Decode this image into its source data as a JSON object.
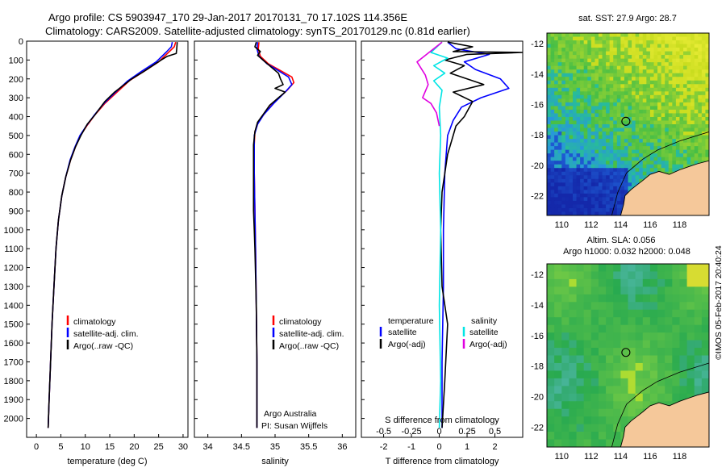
{
  "titles": {
    "line1": "Argo profile: CS 5903947_170 29-Jan-2017 20170131_70 17.102S 114.356E",
    "line2": "Climatology: CARS2009. Satellite-adjusted climatology: synTS_20170129.nc (0.81d earlier)"
  },
  "colors": {
    "climatology": "#ff0000",
    "satellite": "#0000ff",
    "argo": "#000000",
    "salinity_satellite": "#00e5e5",
    "salinity_argo": "#e000e0",
    "land": "#f5c89a"
  },
  "footer": {
    "credit": "Argo Australia",
    "pi": "PI: Susan Wijffels",
    "timestamp": "©IMOS 05-Feb-2017 20:40:24"
  },
  "chart_data": [
    {
      "type": "line",
      "name": "temperature-profile",
      "xlabel": "temperature (deg C)",
      "ylabel": "",
      "xlim": [
        -2,
        31
      ],
      "ylim": [
        2100,
        0
      ],
      "xticks": [
        0,
        5,
        10,
        15,
        20,
        25,
        30
      ],
      "yticks": [
        0,
        100,
        200,
        300,
        400,
        500,
        600,
        700,
        800,
        900,
        1000,
        1100,
        1200,
        1300,
        1400,
        1500,
        1600,
        1700,
        1800,
        1900,
        2000
      ],
      "legend": [
        "climatology",
        "satellite-adj. clim.",
        "Argo(..raw -QC)"
      ],
      "series": [
        {
          "name": "climatology",
          "color": "#ff0000",
          "points": [
            [
              28.5,
              5
            ],
            [
              28.2,
              30
            ],
            [
              27.0,
              60
            ],
            [
              25.0,
              110
            ],
            [
              22.0,
              160
            ],
            [
              19.0,
              210
            ],
            [
              16.5,
              270
            ],
            [
              14.0,
              330
            ],
            [
              12.0,
              390
            ],
            [
              10.3,
              450
            ],
            [
              9.0,
              500
            ],
            [
              8.0,
              560
            ],
            [
              7.0,
              630
            ],
            [
              6.0,
              720
            ],
            [
              5.2,
              820
            ],
            [
              4.5,
              950
            ],
            [
              4.0,
              1100
            ],
            [
              3.6,
              1300
            ],
            [
              3.2,
              1500
            ],
            [
              2.9,
              1700
            ],
            [
              2.6,
              1900
            ],
            [
              2.4,
              2050
            ]
          ]
        },
        {
          "name": "satellite-adj. clim.",
          "color": "#0000ff",
          "points": [
            [
              27.8,
              5
            ],
            [
              27.6,
              30
            ],
            [
              26.5,
              60
            ],
            [
              24.5,
              110
            ],
            [
              21.5,
              160
            ],
            [
              18.7,
              210
            ],
            [
              16.2,
              270
            ],
            [
              13.8,
              330
            ],
            [
              11.9,
              390
            ],
            [
              10.2,
              450
            ],
            [
              8.9,
              500
            ],
            [
              7.9,
              560
            ],
            [
              6.9,
              630
            ],
            [
              6.0,
              720
            ],
            [
              5.2,
              820
            ],
            [
              4.5,
              950
            ],
            [
              4.0,
              1100
            ],
            [
              3.6,
              1300
            ],
            [
              3.2,
              1500
            ],
            [
              2.9,
              1700
            ],
            [
              2.6,
              1900
            ],
            [
              2.4,
              2050
            ]
          ]
        },
        {
          "name": "Argo(..raw -QC)",
          "color": "#000000",
          "points": [
            [
              28.8,
              5
            ],
            [
              28.7,
              40
            ],
            [
              28.6,
              65
            ],
            [
              26.8,
              80
            ],
            [
              25.5,
              100
            ],
            [
              22.0,
              160
            ],
            [
              19.5,
              200
            ],
            [
              16.0,
              270
            ],
            [
              14.0,
              320
            ],
            [
              12.0,
              390
            ],
            [
              10.4,
              440
            ],
            [
              9.1,
              500
            ],
            [
              8.0,
              560
            ],
            [
              7.0,
              630
            ],
            [
              6.0,
              720
            ],
            [
              5.2,
              820
            ],
            [
              4.5,
              950
            ],
            [
              4.0,
              1100
            ],
            [
              3.6,
              1300
            ],
            [
              3.2,
              1500
            ],
            [
              2.9,
              1700
            ],
            [
              2.6,
              1900
            ],
            [
              2.4,
              2050
            ]
          ]
        }
      ]
    },
    {
      "type": "line",
      "name": "salinity-profile",
      "xlabel": "salinity",
      "ylabel": "",
      "xlim": [
        33.8,
        36.2
      ],
      "ylim": [
        2100,
        0
      ],
      "xticks": [
        34,
        34.5,
        35,
        35.5,
        36
      ],
      "yticks": [],
      "legend": [
        "climatology",
        "satellite-adj. clim.",
        "Argo(..raw -QC)"
      ],
      "series": [
        {
          "name": "climatology",
          "color": "#ff0000",
          "points": [
            [
              34.76,
              5
            ],
            [
              34.75,
              40
            ],
            [
              34.78,
              80
            ],
            [
              34.9,
              120
            ],
            [
              35.05,
              150
            ],
            [
              35.25,
              190
            ],
            [
              35.28,
              220
            ],
            [
              35.18,
              260
            ],
            [
              35.0,
              320
            ],
            [
              34.85,
              380
            ],
            [
              34.75,
              430
            ],
            [
              34.7,
              480
            ],
            [
              34.69,
              550
            ],
            [
              34.69,
              700
            ],
            [
              34.7,
              900
            ],
            [
              34.71,
              1100
            ],
            [
              34.72,
              1400
            ],
            [
              34.73,
              1700
            ],
            [
              34.73,
              2050
            ]
          ]
        },
        {
          "name": "satellite-adj. clim.",
          "color": "#0000ff",
          "points": [
            [
              34.74,
              5
            ],
            [
              34.73,
              40
            ],
            [
              34.76,
              80
            ],
            [
              34.88,
              120
            ],
            [
              35.02,
              150
            ],
            [
              35.2,
              190
            ],
            [
              35.25,
              230
            ],
            [
              35.15,
              270
            ],
            [
              34.98,
              330
            ],
            [
              34.83,
              390
            ],
            [
              34.74,
              440
            ],
            [
              34.69,
              500
            ],
            [
              34.69,
              700
            ],
            [
              34.7,
              900
            ],
            [
              34.71,
              1100
            ],
            [
              34.72,
              1400
            ],
            [
              34.73,
              1700
            ],
            [
              34.73,
              2050
            ]
          ]
        },
        {
          "name": "Argo(..raw -QC)",
          "color": "#000000",
          "points": [
            [
              34.72,
              5
            ],
            [
              34.7,
              30
            ],
            [
              34.78,
              55
            ],
            [
              34.74,
              75
            ],
            [
              34.82,
              100
            ],
            [
              34.95,
              140
            ],
            [
              35.05,
              170
            ],
            [
              35.08,
              200
            ],
            [
              35.12,
              230
            ],
            [
              35.0,
              250
            ],
            [
              35.15,
              270
            ],
            [
              35.05,
              300
            ],
            [
              34.92,
              340
            ],
            [
              34.82,
              390
            ],
            [
              34.74,
              430
            ],
            [
              34.7,
              480
            ],
            [
              34.68,
              550
            ],
            [
              34.68,
              700
            ],
            [
              34.68,
              900
            ],
            [
              34.69,
              1000
            ],
            [
              34.7,
              1100
            ],
            [
              34.72,
              1400
            ],
            [
              34.73,
              1700
            ],
            [
              34.73,
              2050
            ]
          ]
        }
      ]
    },
    {
      "type": "line",
      "name": "difference-profile",
      "xlabel": "T difference from climatology",
      "xlabel2": "S difference from climatology",
      "ylabel": "",
      "xlim": [
        -2.8,
        3.0
      ],
      "ylim": [
        2100,
        0
      ],
      "xticks": [
        -2,
        -1,
        0,
        1,
        2
      ],
      "xticks2": [
        "-0.5",
        "-0.25",
        "0",
        "0.25",
        "0.5"
      ],
      "legend_groups": {
        "left": "temperature",
        "right": "salinity"
      },
      "legend": [
        "satellite",
        "Argo(-adj)",
        "satellite",
        "Argo(-adj)"
      ],
      "series": [
        {
          "name": "temperature satellite",
          "color": "#0000ff",
          "points": [
            [
              0.3,
              5
            ],
            [
              0.6,
              40
            ],
            [
              1.8,
              70
            ],
            [
              0.9,
              110
            ],
            [
              1.3,
              150
            ],
            [
              2.2,
              200
            ],
            [
              2.5,
              250
            ],
            [
              1.5,
              300
            ],
            [
              0.8,
              350
            ],
            [
              0.5,
              420
            ],
            [
              0.3,
              500
            ],
            [
              0.2,
              700
            ],
            [
              0.15,
              1000
            ],
            [
              0.15,
              1300
            ],
            [
              0.1,
              1700
            ],
            [
              0.1,
              2050
            ]
          ]
        },
        {
          "name": "temperature Argo(-adj)",
          "color": "#000000",
          "points": [
            [
              0.3,
              5
            ],
            [
              1.2,
              30
            ],
            [
              0.5,
              55
            ],
            [
              3.0,
              60
            ],
            [
              1.0,
              70
            ],
            [
              0.2,
              100
            ],
            [
              0.9,
              130
            ],
            [
              0.4,
              170
            ],
            [
              1.6,
              230
            ],
            [
              0.5,
              270
            ],
            [
              1.2,
              320
            ],
            [
              0.9,
              400
            ],
            [
              0.6,
              450
            ],
            [
              0.5,
              500
            ],
            [
              0.3,
              600
            ],
            [
              0.1,
              800
            ],
            [
              0.05,
              1000
            ],
            [
              0.1,
              1300
            ],
            [
              0.3,
              1500
            ],
            [
              0.2,
              1800
            ],
            [
              0.1,
              2050
            ]
          ]
        },
        {
          "name": "salinity satellite",
          "color": "#00e5e5",
          "points": [
            [
              0.1,
              5
            ],
            [
              -0.3,
              60
            ],
            [
              0.3,
              90
            ],
            [
              -0.2,
              130
            ],
            [
              0.2,
              170
            ],
            [
              -0.2,
              210
            ],
            [
              0.1,
              260
            ],
            [
              0.0,
              350
            ],
            [
              0.05,
              500
            ],
            [
              0.0,
              700
            ],
            [
              0.05,
              1000
            ],
            [
              0.0,
              1400
            ],
            [
              0.05,
              1800
            ],
            [
              0.0,
              2050
            ]
          ]
        },
        {
          "name": "salinity Argo(-adj)",
          "color": "#e000e0",
          "points": [
            [
              0.1,
              5
            ],
            [
              -0.2,
              40
            ],
            [
              -0.8,
              110
            ],
            [
              -0.5,
              180
            ],
            [
              -0.4,
              230
            ],
            [
              -0.6,
              300
            ],
            [
              -0.3,
              330
            ],
            [
              -0.1,
              380
            ],
            [
              0.0,
              450
            ]
          ]
        }
      ]
    },
    {
      "type": "heatmap",
      "name": "sst-map",
      "title": "sat. SST: 27.9 Argo: 28.7",
      "xlim": [
        109,
        120
      ],
      "ylim": [
        -23.3,
        -11.3
      ],
      "xticks": [
        110,
        112,
        114,
        116,
        118
      ],
      "yticks": [
        -12,
        -14,
        -16,
        -18,
        -20,
        -22
      ],
      "marker": {
        "lon": 114.356,
        "lat": -17.102
      }
    },
    {
      "type": "heatmap",
      "name": "sla-map",
      "title": "Altim. SLA: 0.056",
      "subtitle": "Argo h1000: 0.032 h2000: 0.048",
      "xlim": [
        109,
        120
      ],
      "ylim": [
        -23.3,
        -11.3
      ],
      "xticks": [
        110,
        112,
        114,
        116,
        118
      ],
      "yticks": [
        -12,
        -14,
        -16,
        -18,
        -20,
        -22
      ],
      "marker": {
        "lon": 114.356,
        "lat": -17.102
      }
    }
  ]
}
